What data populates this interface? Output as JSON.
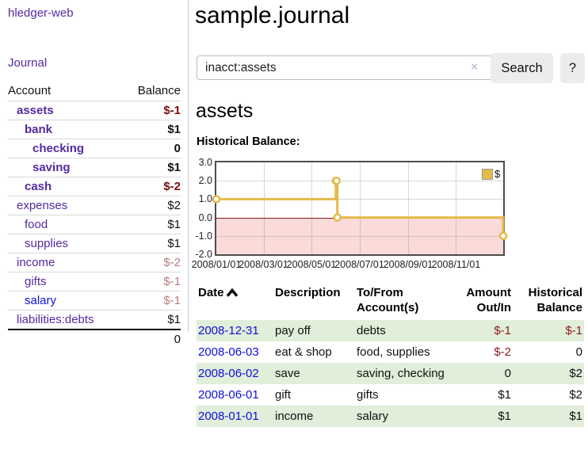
{
  "app": {
    "brand": "hledger-web",
    "nav": {
      "journal": "Journal"
    }
  },
  "sidebar": {
    "headers": {
      "account": "Account",
      "balance": "Balance"
    },
    "accounts": [
      {
        "name": "assets",
        "balance": "$-1",
        "indent": 1,
        "bold": true,
        "balance_class": "neg-strong",
        "link_color": "purple"
      },
      {
        "name": "bank",
        "balance": "$1",
        "indent": 2,
        "bold": true,
        "balance_class": "",
        "link_color": "purple"
      },
      {
        "name": "checking",
        "balance": "0",
        "indent": 3,
        "bold": true,
        "balance_class": "",
        "link_color": "purple"
      },
      {
        "name": "saving",
        "balance": "$1",
        "indent": 3,
        "bold": true,
        "balance_class": "",
        "link_color": "purple"
      },
      {
        "name": "cash",
        "balance": "$-2",
        "indent": 2,
        "bold": true,
        "balance_class": "neg-strong",
        "link_color": "purple"
      },
      {
        "name": "expenses",
        "balance": "$2",
        "indent": 1,
        "bold": false,
        "balance_class": "",
        "link_color": "purple"
      },
      {
        "name": "food",
        "balance": "$1",
        "indent": 2,
        "bold": false,
        "balance_class": "",
        "link_color": "purple"
      },
      {
        "name": "supplies",
        "balance": "$1",
        "indent": 2,
        "bold": false,
        "balance_class": "",
        "link_color": "purple"
      },
      {
        "name": "income",
        "balance": "$-2",
        "indent": 1,
        "bold": false,
        "balance_class": "neg-weak",
        "link_color": "purple"
      },
      {
        "name": "gifts",
        "balance": "$-1",
        "indent": 2,
        "bold": false,
        "balance_class": "neg-weak",
        "link_color": "purple"
      },
      {
        "name": "salary",
        "balance": "$-1",
        "indent": 2,
        "bold": false,
        "balance_class": "neg-weak",
        "link_color": "blue"
      },
      {
        "name": "liabilities:debts",
        "balance": "$1",
        "indent": 1,
        "bold": false,
        "balance_class": "",
        "link_color": "purple"
      }
    ],
    "total": "0"
  },
  "main": {
    "title": "sample.journal",
    "search": {
      "value": "inacct:assets",
      "clear_icon": "×",
      "button": "Search",
      "help_button": "?"
    },
    "account_heading": "assets",
    "chart_label": "Historical Balance:"
  },
  "chart_data": {
    "type": "line",
    "step": true,
    "title": "Historical Balance:",
    "series": [
      {
        "name": "$",
        "points": [
          {
            "date": "2008-01-01",
            "value": 1
          },
          {
            "date": "2008-06-01",
            "value": 2
          },
          {
            "date": "2008-06-02",
            "value": 2
          },
          {
            "date": "2008-06-03",
            "value": 0
          },
          {
            "date": "2008-12-31",
            "value": -1
          }
        ]
      }
    ],
    "ylim": [
      -2,
      3
    ],
    "y_ticks": [
      "3.0",
      "2.0",
      "1.0",
      "0.0",
      "-1.0",
      "-2.0"
    ],
    "x_ticks": [
      {
        "label": "2008/01/01",
        "date": "2008-01-01"
      },
      {
        "label": "2008/03/01",
        "date": "2008-03-01"
      },
      {
        "label": "2008/05/01",
        "date": "2008-05-01"
      },
      {
        "label": "2008/07/01",
        "date": "2008-07-01"
      },
      {
        "label": "2008/09/01",
        "date": "2008-09-01"
      },
      {
        "label": "2008/11/01",
        "date": "2008-11-01"
      }
    ],
    "x_range_days": 365,
    "legend": {
      "label": "$",
      "position": "top-right"
    },
    "negative_region_shaded": true,
    "grid": true
  },
  "register": {
    "headers": {
      "date": "Date",
      "description": "Description",
      "accounts": "To/From Account(s)",
      "amount": "Amount Out/In",
      "balance": "Historical Balance"
    },
    "sort": {
      "column": "date",
      "direction": "asc"
    },
    "rows": [
      {
        "date": "2008-12-31",
        "description": "pay off",
        "accounts": "debts",
        "amount": "$-1",
        "balance": "$-1",
        "amount_neg": true,
        "balance_neg": true
      },
      {
        "date": "2008-06-03",
        "description": "eat & shop",
        "accounts": "food, supplies",
        "amount": "$-2",
        "balance": "0",
        "amount_neg": true,
        "balance_neg": false
      },
      {
        "date": "2008-06-02",
        "description": "save",
        "accounts": "saving, checking",
        "amount": "0",
        "balance": "$2",
        "amount_neg": false,
        "balance_neg": false
      },
      {
        "date": "2008-06-01",
        "description": "gift",
        "accounts": "gifts",
        "amount": "$1",
        "balance": "$2",
        "amount_neg": false,
        "balance_neg": false
      },
      {
        "date": "2008-01-01",
        "description": "income",
        "accounts": "salary",
        "amount": "$1",
        "balance": "$1",
        "amount_neg": false,
        "balance_neg": false
      }
    ]
  },
  "colors": {
    "link_purple": "#552a9e",
    "link_blue": "#0f0fd9",
    "negative_strong": "#7c0e0e",
    "negative_weak": "#bb7b7b",
    "negative_table": "#8b1a1a",
    "row_stripe_green": "#e0eeda",
    "chart_line_gold": "#e4ba49",
    "chart_negative_fill": "#fbdada",
    "chart_zero_line": "#8b1a1a",
    "button_bg": "#ececec"
  }
}
